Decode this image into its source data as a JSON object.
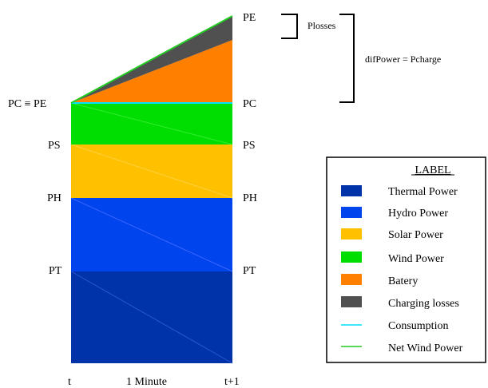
{
  "levels": {
    "pe_top": "PE",
    "pc_left": "PC ≡ PE",
    "pc_right": "PC",
    "ps_left": "PS",
    "ps_right": "PS",
    "ph_left": "PH",
    "ph_right": "PH",
    "pt_left": "PT",
    "pt_right": "PT"
  },
  "time_axis": {
    "start": "t",
    "duration": "1 Minute",
    "end": "t+1"
  },
  "annotations": {
    "losses": "Plosses",
    "difference": "difPower = Pcharge"
  },
  "legend": {
    "title": "LABEL",
    "items": [
      {
        "label": "Thermal Power",
        "color": "#0033aa",
        "kind": "swatch"
      },
      {
        "label": "Hydro Power",
        "color": "#0044ee",
        "kind": "swatch"
      },
      {
        "label": "Solar Power",
        "color": "#ffc000",
        "kind": "swatch"
      },
      {
        "label": "Wind Power",
        "color": "#00dd00",
        "kind": "swatch"
      },
      {
        "label": "Batery",
        "color": "#ff7f00",
        "kind": "swatch"
      },
      {
        "label": "Charging losses",
        "color": "#505050",
        "kind": "swatch"
      },
      {
        "label": "Consumption",
        "color": "#00e0ff",
        "kind": "line"
      },
      {
        "label": "Net Wind Power",
        "color": "#22cc22",
        "kind": "line"
      }
    ]
  },
  "colors": {
    "thermal": "#0033aa",
    "hydro": "#0044ee",
    "solar": "#ffc000",
    "wind": "#00dd00",
    "battery": "#ff7f00",
    "losses": "#505050",
    "consumption": "#00e0ff",
    "net_wind": "#22cc22"
  }
}
